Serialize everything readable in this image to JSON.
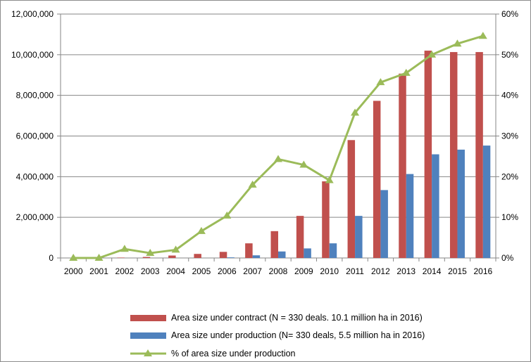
{
  "chart_data": {
    "type": "bar",
    "categories": [
      "2000",
      "2001",
      "2002",
      "2003",
      "2004",
      "2005",
      "2006",
      "2007",
      "2008",
      "2009",
      "2010",
      "2011",
      "2012",
      "2013",
      "2014",
      "2015",
      "2016"
    ],
    "series": [
      {
        "name": "Area size under contract (N = 330 deals. 10.1 million ha in 2016)",
        "type": "bar",
        "axis": "left",
        "color": "#c0504d",
        "values": [
          0,
          0,
          20000,
          50000,
          120000,
          200000,
          300000,
          720000,
          1320000,
          2070000,
          3770000,
          5800000,
          7730000,
          9070000,
          10200000,
          10130000,
          10130000
        ]
      },
      {
        "name": "Area size under production (N= 330 deals, 5.5 million ha in 2016)",
        "type": "bar",
        "axis": "left",
        "color": "#4f81bd",
        "values": [
          0,
          0,
          0,
          0,
          0,
          0,
          30000,
          130000,
          320000,
          470000,
          720000,
          2070000,
          3340000,
          4130000,
          5100000,
          5330000,
          5530000
        ]
      },
      {
        "name": "% of area size under production",
        "type": "line",
        "axis": "right",
        "color": "#9bbb59",
        "marker": "triangle",
        "values": [
          0,
          0,
          0.022,
          0.012,
          0.02,
          0.066,
          0.104,
          0.18,
          0.243,
          0.229,
          0.191,
          0.357,
          0.432,
          0.455,
          0.5,
          0.527,
          0.546
        ]
      }
    ],
    "left_axis": {
      "ylim": [
        0,
        12000000
      ],
      "ticks": [
        0,
        2000000,
        4000000,
        6000000,
        8000000,
        10000000,
        12000000
      ],
      "tick_labels": [
        "0",
        "2,000,000",
        "4,000,000",
        "6,000,000",
        "8,000,000",
        "10,000,000",
        "12,000,000"
      ]
    },
    "right_axis": {
      "ylim": [
        0,
        0.6
      ],
      "ticks": [
        0,
        0.1,
        0.2,
        0.3,
        0.4,
        0.5,
        0.6
      ],
      "tick_labels": [
        "0%",
        "10%",
        "20%",
        "30%",
        "40%",
        "50%",
        "60%"
      ]
    },
    "title": "",
    "xlabel": "",
    "ylabel": "",
    "grid": "horizontal",
    "legend_position": "bottom"
  }
}
